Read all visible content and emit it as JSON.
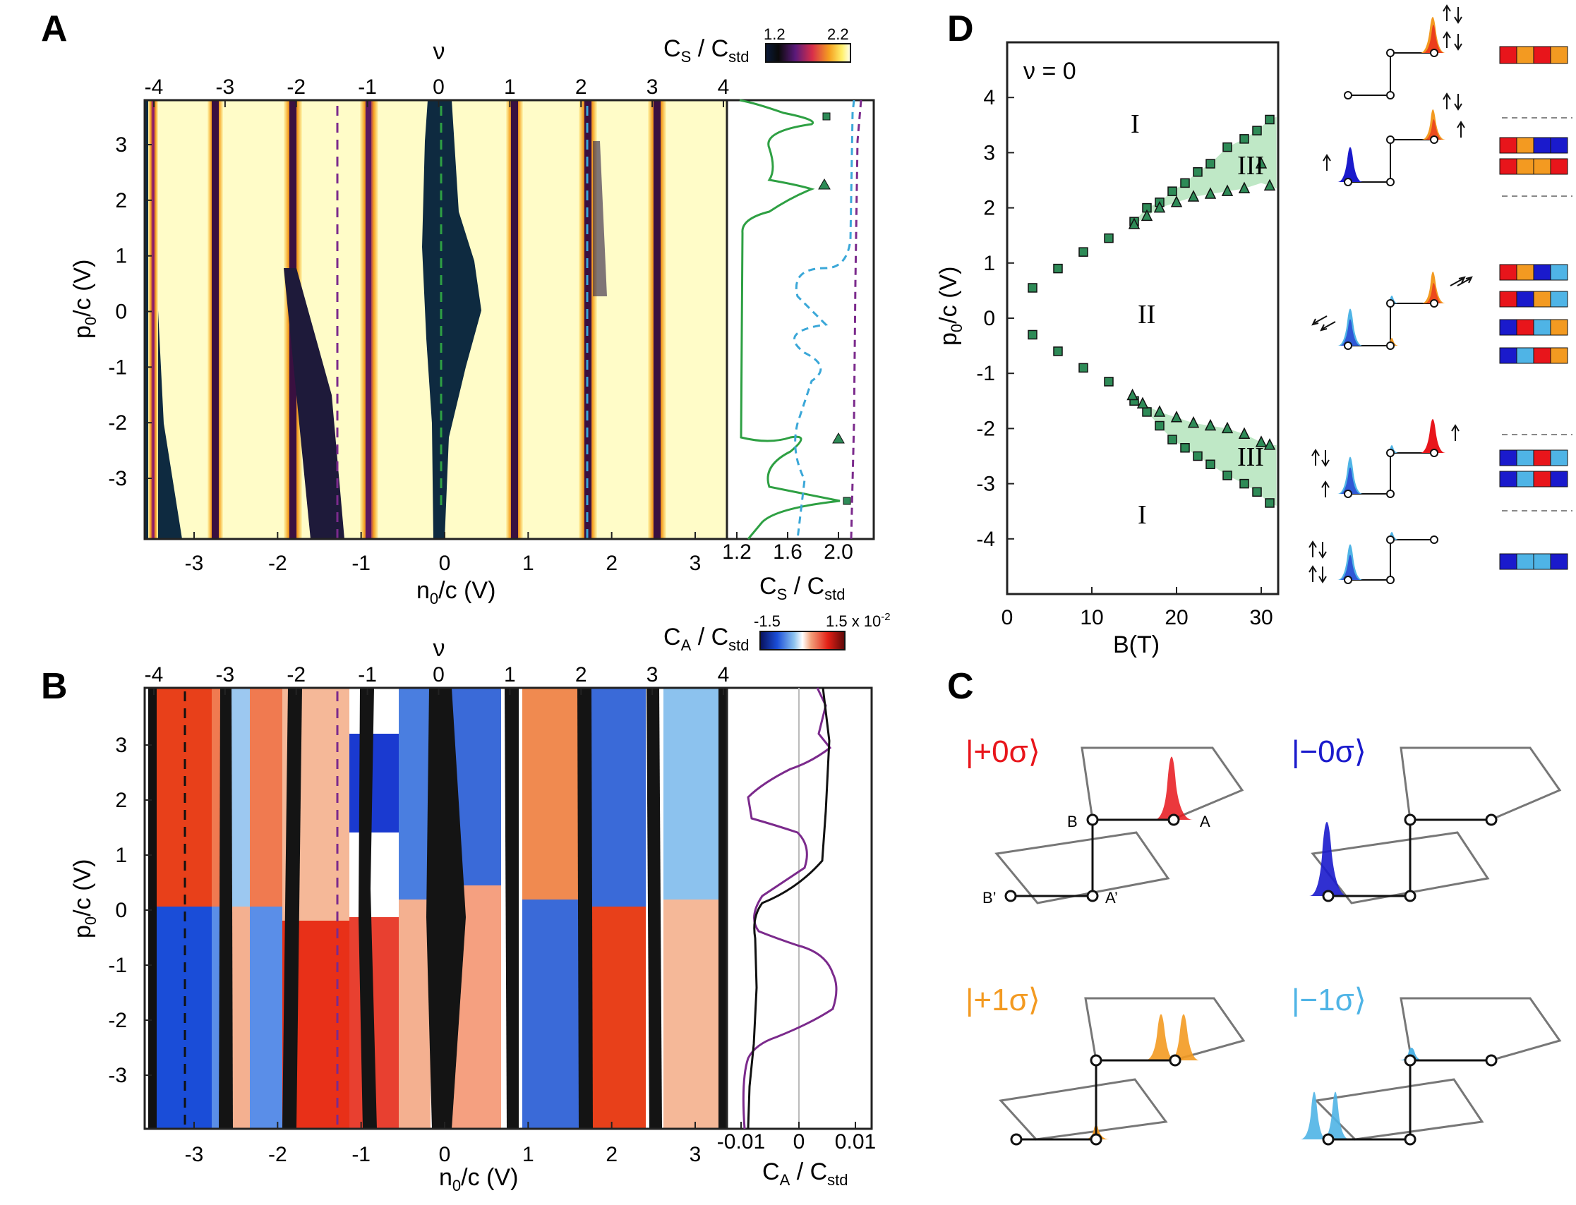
{
  "panel_labels": {
    "a": "A",
    "b": "B",
    "c": "C",
    "d": "D"
  },
  "colors": {
    "red": "#e8151b",
    "blue": "#1a1acc",
    "orange": "#f39a21",
    "lightblue": "#4fb4e6",
    "green": "#2ea043",
    "cyan_dashed": "#3aa7d8",
    "purple": "#7b2a8c",
    "fill_green": "#bfe8c6",
    "marker": "#2e8b57"
  },
  "panel_a": {
    "nu_label": "ν",
    "nu_ticks": [
      "-4",
      "-3",
      "-2",
      "-1",
      "0",
      "1",
      "2",
      "3",
      "4"
    ],
    "x_ticks": [
      "-3",
      "-2",
      "-1",
      "0",
      "1",
      "2",
      "3"
    ],
    "y_ticks": [
      "3",
      "2",
      "1",
      "0",
      "-1",
      "-2",
      "-3"
    ],
    "xlabel_main": "n",
    "xlabel_sub": "0",
    "xlabel_tail": "/c (V)",
    "ylabel_main": "p",
    "ylabel_sub": "0",
    "ylabel_tail": "/c (V)",
    "colorbar_label_main": "C",
    "colorbar_label_sub1": "S",
    "colorbar_label_mid": " / C",
    "colorbar_label_sub2": "std",
    "colorbar_min": "1.2",
    "colorbar_max": "2.2",
    "side_ticks": [
      "1.2",
      "1.6",
      "2.0"
    ],
    "side_xlabel_main": "C",
    "side_xlabel_sub1": "S",
    "side_xlabel_mid": " / C",
    "side_xlabel_sub2": "std"
  },
  "panel_b": {
    "nu_label": "ν",
    "nu_ticks": [
      "-4",
      "-3",
      "-2",
      "-1",
      "0",
      "1",
      "2",
      "3",
      "4"
    ],
    "x_ticks": [
      "-3",
      "-2",
      "-1",
      "0",
      "1",
      "2",
      "3"
    ],
    "y_ticks": [
      "3",
      "2",
      "1",
      "0",
      "-1",
      "-2",
      "-3"
    ],
    "xlabel_main": "n",
    "xlabel_sub": "0",
    "xlabel_tail": "/c (V)",
    "ylabel_main": "p",
    "ylabel_sub": "0",
    "ylabel_tail": "/c (V)",
    "colorbar_label_main": "C",
    "colorbar_label_sub1": "A",
    "colorbar_label_mid": " / C",
    "colorbar_label_sub2": "std",
    "colorbar_min": "-1.5",
    "colorbar_max": "1.5 x 10",
    "colorbar_exp": "-2",
    "side_ticks": [
      "-0.01",
      "0",
      "0.01"
    ],
    "side_xlabel_main": "C",
    "side_xlabel_sub1": "A",
    "side_xlabel_mid": " / C",
    "side_xlabel_sub2": "std"
  },
  "panel_c": {
    "states": [
      {
        "ket": "|+0σ⟩",
        "color": "#e8151b"
      },
      {
        "ket": "|−0σ⟩",
        "color": "#1a1acc"
      },
      {
        "ket": "|+1σ⟩",
        "color": "#f39a21"
      },
      {
        "ket": "|−1σ⟩",
        "color": "#4fb4e6"
      }
    ],
    "site_labels": {
      "b": "B",
      "a": "A",
      "bp": "B’",
      "ap": "A’"
    }
  },
  "chart_data": {
    "type": "scatter",
    "title": "",
    "annotation": "ν = 0",
    "xlabel": "B(T)",
    "ylabel": "p0/c (V)",
    "xlim": [
      0,
      32
    ],
    "ylim": [
      -5,
      5
    ],
    "x_ticks": [
      "0",
      "10",
      "20",
      "30"
    ],
    "y_ticks": [
      "4",
      "3",
      "2",
      "1",
      "0",
      "-1",
      "-2",
      "-3",
      "-4"
    ],
    "region_labels": [
      "I",
      "III",
      "II",
      "III",
      "I"
    ],
    "series": [
      {
        "name": "squares_upper",
        "marker": "square",
        "x": [
          3,
          6,
          9,
          12,
          15,
          16.5,
          18,
          19.5,
          21,
          22.5,
          24,
          26,
          28,
          29.5,
          31
        ],
        "y": [
          0.55,
          0.9,
          1.2,
          1.45,
          1.75,
          2.0,
          2.1,
          2.3,
          2.45,
          2.65,
          2.8,
          3.1,
          3.25,
          3.4,
          3.6
        ]
      },
      {
        "name": "squares_lower",
        "marker": "square",
        "x": [
          3,
          6,
          9,
          12,
          15,
          16.5,
          18,
          19.5,
          21,
          22.5,
          24,
          26,
          28,
          29.5,
          31
        ],
        "y": [
          -0.3,
          -0.6,
          -0.9,
          -1.15,
          -1.5,
          -1.7,
          -1.95,
          -2.2,
          -2.35,
          -2.5,
          -2.65,
          -2.85,
          -3.0,
          -3.15,
          -3.35
        ]
      },
      {
        "name": "triangles_upper",
        "marker": "triangle",
        "x": [
          15,
          16.5,
          18,
          20,
          22,
          24,
          26,
          28,
          30,
          31
        ],
        "y": [
          1.7,
          1.85,
          2.0,
          2.1,
          2.2,
          2.25,
          2.3,
          2.35,
          2.8,
          2.4
        ]
      },
      {
        "name": "triangles_lower",
        "marker": "triangle",
        "x": [
          14.8,
          16,
          18,
          20,
          22,
          24,
          26,
          28,
          30,
          31
        ],
        "y": [
          -1.4,
          -1.55,
          -1.7,
          -1.8,
          -1.9,
          -1.95,
          -2.0,
          -2.1,
          -2.25,
          -2.3
        ]
      }
    ]
  }
}
